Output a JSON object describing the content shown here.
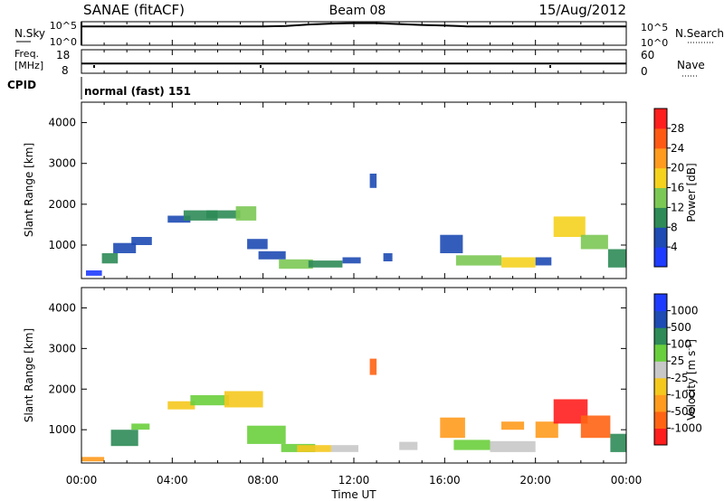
{
  "header": {
    "station": "SANAE (fitACF)",
    "beam": "Beam 08",
    "date": "15/Aug/2012"
  },
  "chart_data": [
    {
      "type": "line",
      "name": "noise-panel",
      "left_label": "N.Sky",
      "right_label": "N.Search",
      "left_ticks": [
        "10^5",
        "10^0"
      ],
      "right_ticks": [
        "10^5",
        "10^0"
      ],
      "ylim_log10": [
        0,
        5
      ],
      "x_hours": [
        0,
        1,
        2,
        3,
        4,
        5,
        6,
        7,
        8,
        9,
        10,
        11,
        12,
        13,
        14,
        15,
        16,
        17,
        18,
        19,
        20,
        21,
        22,
        23,
        24
      ],
      "y_log10": [
        4.0,
        4.0,
        4.0,
        4.0,
        4.0,
        4.0,
        4.0,
        4.0,
        4.0,
        4.1,
        4.4,
        4.6,
        4.7,
        4.7,
        4.5,
        4.3,
        4.2,
        4.0,
        4.0,
        4.0,
        4.0,
        4.0,
        4.0,
        4.0,
        4.0
      ]
    },
    {
      "type": "line",
      "name": "freq-panel",
      "left_label_line1": "Freq.",
      "left_label_line2": "[MHz]",
      "right_label": "Nave",
      "left_ticks": [
        "18",
        "8"
      ],
      "right_ticks": [
        "60",
        "0"
      ],
      "ylim": [
        8,
        18
      ],
      "x_hours": [
        0,
        4,
        8,
        12,
        16,
        20,
        24
      ],
      "freq_mhz": [
        12.1,
        12.1,
        12.1,
        12.1,
        12.1,
        12.1,
        12.1
      ]
    },
    {
      "type": "text",
      "name": "cpid-panel",
      "label": "CPID",
      "program": "normal (fast) 151"
    },
    {
      "type": "heatmap",
      "name": "power-panel",
      "ylabel": "Slant Range [km]",
      "yticks": [
        "1000",
        "2000",
        "3000",
        "4000"
      ],
      "ylim": [
        180,
        4500
      ],
      "colorbar_label": "Power [dB]",
      "colorbar_ticks": [
        "4",
        "8",
        "12",
        "16",
        "20",
        "24",
        "28"
      ],
      "colorbar_colors": [
        "#1e3cff",
        "#1e4bb4",
        "#2e8b57",
        "#7cc855",
        "#f5d21e",
        "#ff9b1e",
        "#ff5a14",
        "#ff1e1e"
      ],
      "colorbar_range": [
        0,
        32
      ],
      "patches": [
        {
          "t0": 0.2,
          "t1": 0.9,
          "r0": 250,
          "r1": 380,
          "v": 3
        },
        {
          "t0": 0.9,
          "t1": 1.6,
          "r0": 550,
          "r1": 800,
          "v": 10
        },
        {
          "t0": 1.4,
          "t1": 2.4,
          "r0": 800,
          "r1": 1050,
          "v": 7
        },
        {
          "t0": 2.2,
          "t1": 3.1,
          "r0": 1000,
          "r1": 1200,
          "v": 6
        },
        {
          "t0": 3.8,
          "t1": 4.8,
          "r0": 1550,
          "r1": 1720,
          "v": 7
        },
        {
          "t0": 4.5,
          "t1": 6.0,
          "r0": 1600,
          "r1": 1850,
          "v": 9
        },
        {
          "t0": 5.5,
          "t1": 7.0,
          "r0": 1650,
          "r1": 1850,
          "v": 11
        },
        {
          "t0": 6.8,
          "t1": 7.7,
          "r0": 1600,
          "r1": 1950,
          "v": 13
        },
        {
          "t0": 7.3,
          "t1": 8.2,
          "r0": 900,
          "r1": 1150,
          "v": 5
        },
        {
          "t0": 7.8,
          "t1": 9.0,
          "r0": 650,
          "r1": 850,
          "v": 7
        },
        {
          "t0": 8.7,
          "t1": 10.2,
          "r0": 420,
          "r1": 650,
          "v": 12
        },
        {
          "t0": 10.0,
          "t1": 11.5,
          "r0": 450,
          "r1": 620,
          "v": 10
        },
        {
          "t0": 11.5,
          "t1": 12.3,
          "r0": 550,
          "r1": 700,
          "v": 6
        },
        {
          "t0": 12.7,
          "t1": 13.0,
          "r0": 2400,
          "r1": 2750,
          "v": 5
        },
        {
          "t0": 13.3,
          "t1": 13.7,
          "r0": 600,
          "r1": 800,
          "v": 4
        },
        {
          "t0": 15.8,
          "t1": 16.8,
          "r0": 800,
          "r1": 1250,
          "v": 6
        },
        {
          "t0": 16.5,
          "t1": 18.5,
          "r0": 500,
          "r1": 750,
          "v": 14
        },
        {
          "t0": 18.5,
          "t1": 20.0,
          "r0": 450,
          "r1": 700,
          "v": 16
        },
        {
          "t0": 20.0,
          "t1": 20.7,
          "r0": 500,
          "r1": 700,
          "v": 6
        },
        {
          "t0": 20.8,
          "t1": 22.2,
          "r0": 1200,
          "r1": 1700,
          "v": 17
        },
        {
          "t0": 22.0,
          "t1": 23.2,
          "r0": 900,
          "r1": 1250,
          "v": 14
        },
        {
          "t0": 23.2,
          "t1": 24.0,
          "r0": 450,
          "r1": 900,
          "v": 9
        }
      ]
    },
    {
      "type": "heatmap",
      "name": "velocity-panel",
      "ylabel": "Slant Range [km]",
      "yticks": [
        "1000",
        "2000",
        "3000",
        "4000"
      ],
      "ylim": [
        180,
        4500
      ],
      "colorbar_label": "Velocity [m s",
      "colorbar_label_sup": "-1",
      "colorbar_label_end": "]",
      "colorbar_ticks": [
        "-1000",
        "-500",
        "-100",
        "-25",
        "25",
        "100",
        "500",
        "1000"
      ],
      "colorbar_colors": [
        "#ff1e1e",
        "#ff6414",
        "#ff9b1e",
        "#f5c81e",
        "#c8c8c8",
        "#6acf3c",
        "#2e8b57",
        "#1e4bb4",
        "#1e3cff"
      ],
      "patches": [
        {
          "t0": 0.0,
          "t1": 1.0,
          "r0": 220,
          "r1": 330,
          "c": 2
        },
        {
          "t0": 1.3,
          "t1": 2.5,
          "r0": 600,
          "r1": 1000,
          "c": 6
        },
        {
          "t0": 2.2,
          "t1": 3.0,
          "r0": 1000,
          "r1": 1150,
          "c": 5
        },
        {
          "t0": 3.8,
          "t1": 5.0,
          "r0": 1500,
          "r1": 1700,
          "c": 3
        },
        {
          "t0": 4.8,
          "t1": 6.5,
          "r0": 1600,
          "r1": 1850,
          "c": 5
        },
        {
          "t0": 6.3,
          "t1": 8.0,
          "r0": 1550,
          "r1": 1950,
          "c": 3
        },
        {
          "t0": 7.3,
          "t1": 9.0,
          "r0": 650,
          "r1": 1100,
          "c": 5
        },
        {
          "t0": 8.8,
          "t1": 10.3,
          "r0": 450,
          "r1": 650,
          "c": 5
        },
        {
          "t0": 9.5,
          "t1": 11.0,
          "r0": 450,
          "r1": 620,
          "c": 3
        },
        {
          "t0": 11.0,
          "t1": 12.2,
          "r0": 450,
          "r1": 620,
          "c": 4
        },
        {
          "t0": 12.7,
          "t1": 13.0,
          "r0": 2350,
          "r1": 2750,
          "c": 1
        },
        {
          "t0": 14.0,
          "t1": 14.8,
          "r0": 500,
          "r1": 700,
          "c": 4
        },
        {
          "t0": 15.8,
          "t1": 16.9,
          "r0": 800,
          "r1": 1300,
          "c": 2
        },
        {
          "t0": 16.4,
          "t1": 18.0,
          "r0": 500,
          "r1": 750,
          "c": 5
        },
        {
          "t0": 18.0,
          "t1": 20.0,
          "r0": 450,
          "r1": 720,
          "c": 4
        },
        {
          "t0": 18.5,
          "t1": 19.5,
          "r0": 1000,
          "r1": 1200,
          "c": 2
        },
        {
          "t0": 20.0,
          "t1": 21.0,
          "r0": 800,
          "r1": 1200,
          "c": 2
        },
        {
          "t0": 20.8,
          "t1": 22.3,
          "r0": 1150,
          "r1": 1750,
          "c": 0
        },
        {
          "t0": 22.0,
          "t1": 23.3,
          "r0": 800,
          "r1": 1350,
          "c": 1
        },
        {
          "t0": 23.3,
          "t1": 24.0,
          "r0": 450,
          "r1": 900,
          "c": 6
        }
      ]
    }
  ],
  "x_axis": {
    "label": "Time UT",
    "ticks": [
      "00:00",
      "04:00",
      "08:00",
      "12:00",
      "16:00",
      "20:00",
      "00:00"
    ],
    "range_hours": [
      0,
      24
    ]
  }
}
